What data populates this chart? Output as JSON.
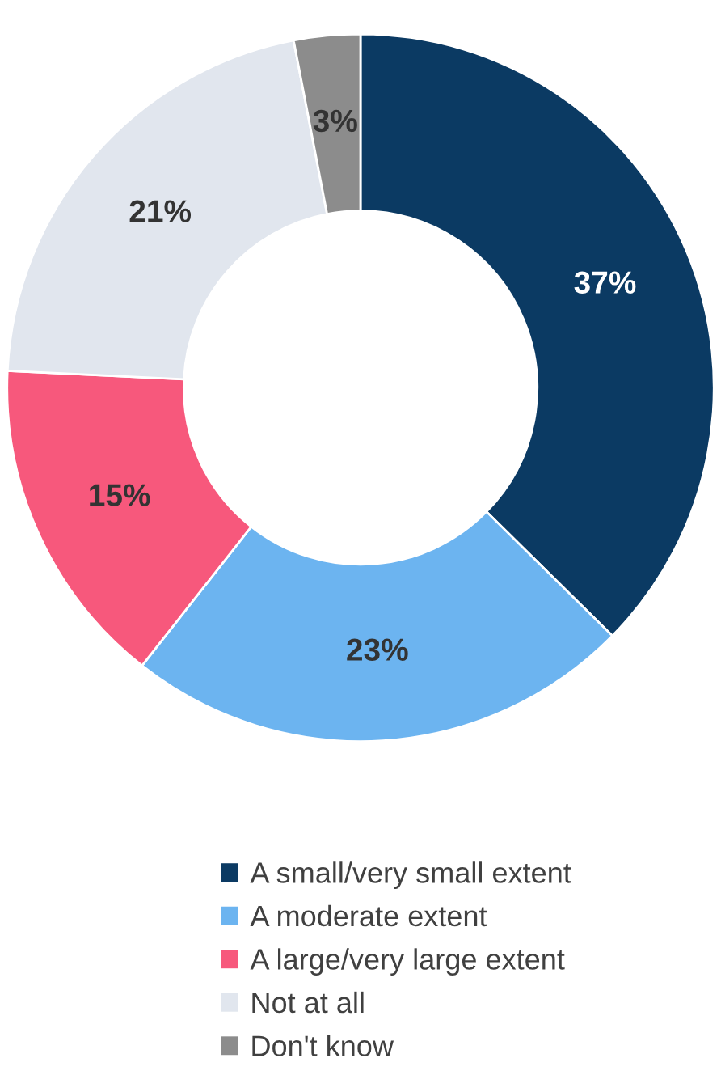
{
  "chart_data": {
    "type": "donut",
    "categories": [
      "A small/very small extent",
      "A moderate extent",
      "A large/very large extent",
      "Not at all",
      "Don't know"
    ],
    "values": [
      37,
      23,
      15,
      21,
      3
    ],
    "colors": [
      "#0b3a63",
      "#6cb4f0",
      "#f7587c",
      "#e1e6ee",
      "#8c8c8c"
    ],
    "value_labels": [
      "37%",
      "23%",
      "15%",
      "21%",
      "3%"
    ],
    "legend": "bottom"
  }
}
